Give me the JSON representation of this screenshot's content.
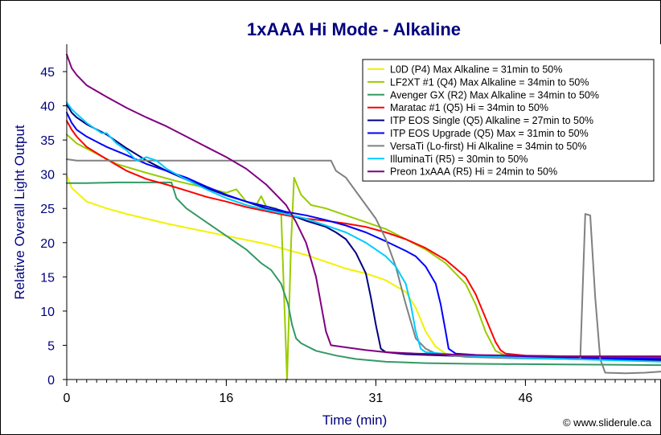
{
  "chart_data": {
    "type": "line",
    "title": "1xAAA Hi Mode - Alkaline",
    "xlabel": "Time (min)",
    "ylabel": "Relative Overall Light Output",
    "xlim": [
      0,
      60
    ],
    "ylim": [
      0,
      49
    ],
    "xticks": [
      0,
      16,
      31,
      46
    ],
    "yticks": [
      0,
      5,
      10,
      15,
      20,
      25,
      30,
      35,
      40,
      45
    ],
    "grid": false,
    "legend_position": "top-right",
    "credit": "© www.sliderule.ca",
    "series": [
      {
        "name": "L0D (P4) Max Alkaline = 31min to 50%",
        "color": "#f2f200",
        "points": [
          [
            0,
            29.8
          ],
          [
            0.5,
            28
          ],
          [
            2,
            26
          ],
          [
            4,
            25
          ],
          [
            6,
            24.2
          ],
          [
            8,
            23.5
          ],
          [
            10,
            22.8
          ],
          [
            12,
            22.2
          ],
          [
            14,
            21.6
          ],
          [
            16,
            21
          ],
          [
            18,
            20.4
          ],
          [
            20,
            19.8
          ],
          [
            22,
            19
          ],
          [
            24,
            18.2
          ],
          [
            26,
            17.2
          ],
          [
            28,
            16.2
          ],
          [
            30,
            15.5
          ],
          [
            32,
            14.5
          ],
          [
            34,
            12.8
          ],
          [
            35,
            10.5
          ],
          [
            36,
            7
          ],
          [
            37,
            4.8
          ],
          [
            38,
            3.8
          ],
          [
            40,
            3.4
          ],
          [
            44,
            3.2
          ],
          [
            50,
            3
          ],
          [
            55,
            2.9
          ],
          [
            60,
            2.8
          ]
        ]
      },
      {
        "name": "LF2XT #1 (Q4) Max Alkaline  = 34min to 50%",
        "color": "#99cc00",
        "points": [
          [
            0,
            35.8
          ],
          [
            1,
            34.5
          ],
          [
            3,
            33
          ],
          [
            5,
            31.5
          ],
          [
            8,
            30.2
          ],
          [
            11,
            29
          ],
          [
            14,
            28
          ],
          [
            16,
            27.3
          ],
          [
            17,
            27.8
          ],
          [
            18,
            26
          ],
          [
            19,
            25.5
          ],
          [
            19.5,
            26.8
          ],
          [
            20,
            25.3
          ],
          [
            21,
            25
          ],
          [
            21.5,
            24.5
          ],
          [
            21.8,
            12
          ],
          [
            22.1,
            0
          ],
          [
            22.5,
            20
          ],
          [
            22.8,
            29.5
          ],
          [
            23.5,
            27
          ],
          [
            24.5,
            25.5
          ],
          [
            26,
            25
          ],
          [
            28,
            24
          ],
          [
            30,
            23
          ],
          [
            32,
            22
          ],
          [
            34,
            20.5
          ],
          [
            36,
            19
          ],
          [
            38,
            17
          ],
          [
            40,
            14
          ],
          [
            41,
            11
          ],
          [
            42,
            7
          ],
          [
            43,
            4.2
          ],
          [
            44,
            3.5
          ],
          [
            48,
            3.2
          ],
          [
            52,
            3.1
          ],
          [
            56,
            3
          ],
          [
            60,
            2.9
          ]
        ]
      },
      {
        "name": "Avenger GX (R2) Max Alkaline = 34min to 50%",
        "color": "#339966",
        "points": [
          [
            0,
            28.7
          ],
          [
            2,
            28.7
          ],
          [
            5,
            28.8
          ],
          [
            8,
            28.8
          ],
          [
            10.5,
            28.8
          ],
          [
            11,
            26.5
          ],
          [
            12,
            25
          ],
          [
            14,
            23
          ],
          [
            16,
            21
          ],
          [
            18,
            19
          ],
          [
            19.5,
            17
          ],
          [
            20.5,
            16
          ],
          [
            21.5,
            14
          ],
          [
            22.2,
            11
          ],
          [
            22.6,
            8
          ],
          [
            23,
            6
          ],
          [
            23.5,
            5.3
          ],
          [
            25,
            4.2
          ],
          [
            27,
            3.5
          ],
          [
            29,
            3
          ],
          [
            32,
            2.6
          ],
          [
            36,
            2.4
          ],
          [
            40,
            2.3
          ],
          [
            50,
            2.2
          ],
          [
            60,
            2.1
          ]
        ]
      },
      {
        "name": "Maratac #1 (Q5) Hi = 34min to 50%",
        "color": "#ff0000",
        "points": [
          [
            0,
            37.8
          ],
          [
            0.5,
            36.5
          ],
          [
            1,
            35.5
          ],
          [
            2,
            34
          ],
          [
            4,
            32.2
          ],
          [
            6,
            30.5
          ],
          [
            8,
            29.3
          ],
          [
            10,
            28.5
          ],
          [
            12,
            27.6
          ],
          [
            14,
            26.7
          ],
          [
            16,
            26
          ],
          [
            18,
            25.2
          ],
          [
            20,
            24.6
          ],
          [
            22,
            24
          ],
          [
            24,
            23.5
          ],
          [
            26,
            23.2
          ],
          [
            28,
            22.8
          ],
          [
            30,
            22.3
          ],
          [
            32,
            21.5
          ],
          [
            34,
            20.5
          ],
          [
            36,
            19.2
          ],
          [
            38,
            17.5
          ],
          [
            40,
            15
          ],
          [
            41,
            12.5
          ],
          [
            42,
            9
          ],
          [
            43,
            5.5
          ],
          [
            43.5,
            4.3
          ],
          [
            44,
            3.8
          ],
          [
            46,
            3.5
          ],
          [
            50,
            3.4
          ],
          [
            55,
            3.3
          ],
          [
            60,
            3.2
          ]
        ]
      },
      {
        "name": "ITP EOS Single (Q5) Alkaline = 27min to 50%",
        "color": "#000080",
        "points": [
          [
            0,
            40.2
          ],
          [
            0.5,
            39
          ],
          [
            1,
            38.3
          ],
          [
            2,
            37.3
          ],
          [
            4,
            35.8
          ],
          [
            6,
            33.8
          ],
          [
            8,
            32
          ],
          [
            10,
            30.5
          ],
          [
            12,
            29.2
          ],
          [
            14,
            28
          ],
          [
            16,
            26.9
          ],
          [
            18,
            26
          ],
          [
            20,
            25
          ],
          [
            22,
            24.3
          ],
          [
            24,
            23.2
          ],
          [
            26,
            22.3
          ],
          [
            27,
            21.5
          ],
          [
            28,
            20.5
          ],
          [
            29,
            18.5
          ],
          [
            30,
            15.5
          ],
          [
            30.5,
            12
          ],
          [
            31,
            8
          ],
          [
            31.5,
            4.5
          ],
          [
            32,
            4
          ],
          [
            34,
            3.7
          ],
          [
            36,
            3.6
          ],
          [
            40,
            3.4
          ],
          [
            45,
            3.2
          ],
          [
            50,
            3
          ],
          [
            55,
            2.9
          ],
          [
            60,
            2.8
          ]
        ]
      },
      {
        "name": "ITP EOS Upgrade (Q5) Max = 31min to 50%",
        "color": "#0000ff",
        "points": [
          [
            0,
            39
          ],
          [
            0.5,
            37.5
          ],
          [
            1,
            36.5
          ],
          [
            2,
            35.5
          ],
          [
            4,
            34
          ],
          [
            6,
            32.8
          ],
          [
            8,
            31.5
          ],
          [
            10,
            30.5
          ],
          [
            12,
            29.5
          ],
          [
            14,
            28.2
          ],
          [
            16,
            27
          ],
          [
            18,
            26
          ],
          [
            20,
            25.3
          ],
          [
            22,
            24.5
          ],
          [
            24,
            24
          ],
          [
            26,
            23.3
          ],
          [
            28,
            22.5
          ],
          [
            30,
            21.5
          ],
          [
            32,
            20.2
          ],
          [
            34,
            18.8
          ],
          [
            35,
            18
          ],
          [
            36,
            16.5
          ],
          [
            37,
            14
          ],
          [
            37.5,
            11
          ],
          [
            38,
            7
          ],
          [
            38.3,
            4.5
          ],
          [
            39,
            3.8
          ],
          [
            42,
            3.5
          ],
          [
            46,
            3.3
          ],
          [
            50,
            3.2
          ],
          [
            55,
            3.1
          ],
          [
            60,
            3
          ]
        ]
      },
      {
        "name": "VersaTi (Lo-first) Hi Alkaline = 34min to 50%",
        "color": "#808080",
        "points": [
          [
            0,
            32.2
          ],
          [
            1,
            32
          ],
          [
            5,
            32
          ],
          [
            10,
            32
          ],
          [
            15,
            32
          ],
          [
            20,
            32
          ],
          [
            24,
            32
          ],
          [
            26.5,
            32
          ],
          [
            27,
            30.5
          ],
          [
            28,
            29.5
          ],
          [
            29,
            27.5
          ],
          [
            30,
            25.5
          ],
          [
            31,
            23.5
          ],
          [
            32,
            20.5
          ],
          [
            33,
            16.5
          ],
          [
            34,
            11
          ],
          [
            35,
            6
          ],
          [
            36,
            4.5
          ],
          [
            37,
            3.8
          ],
          [
            40,
            3.3
          ],
          [
            45,
            3.1
          ],
          [
            50,
            3
          ],
          [
            51.5,
            3
          ],
          [
            52,
            24.2
          ],
          [
            52.5,
            24
          ],
          [
            53,
            12
          ],
          [
            53.5,
            3
          ],
          [
            54,
            1
          ],
          [
            56,
            0.9
          ],
          [
            58,
            1
          ],
          [
            60,
            1.2
          ]
        ]
      },
      {
        "name": "IlluminaTi (R5) = 30min to 50%",
        "color": "#00ccff",
        "points": [
          [
            0,
            40.5
          ],
          [
            0.5,
            39.5
          ],
          [
            1,
            38.8
          ],
          [
            2,
            37.5
          ],
          [
            3,
            36.5
          ],
          [
            3.5,
            36
          ],
          [
            4,
            36
          ],
          [
            5,
            34.5
          ],
          [
            6,
            33.5
          ],
          [
            7,
            32
          ],
          [
            8,
            32.5
          ],
          [
            9,
            32
          ],
          [
            10,
            30.8
          ],
          [
            12,
            29.2
          ],
          [
            14,
            27.8
          ],
          [
            16,
            26.5
          ],
          [
            18,
            25.5
          ],
          [
            20,
            24.8
          ],
          [
            22,
            24.2
          ],
          [
            24,
            23.5
          ],
          [
            26,
            22.5
          ],
          [
            28,
            21.5
          ],
          [
            30,
            20
          ],
          [
            32,
            18
          ],
          [
            33,
            16.5
          ],
          [
            34,
            14
          ],
          [
            34.5,
            11
          ],
          [
            35,
            7
          ],
          [
            35.5,
            4.5
          ],
          [
            36,
            4
          ],
          [
            40,
            3.5
          ],
          [
            45,
            3.2
          ],
          [
            50,
            3
          ],
          [
            55,
            2.8
          ],
          [
            60,
            2.6
          ]
        ]
      },
      {
        "name": "Preon 1xAAA (R5) Hi = 24min to 50%",
        "color": "#800080",
        "points": [
          [
            0,
            47.5
          ],
          [
            0.5,
            45.5
          ],
          [
            1,
            44.5
          ],
          [
            2,
            43
          ],
          [
            4,
            41.3
          ],
          [
            6,
            39.7
          ],
          [
            8,
            38.3
          ],
          [
            10,
            37
          ],
          [
            12,
            35.5
          ],
          [
            14,
            34
          ],
          [
            16,
            32.5
          ],
          [
            18,
            30.8
          ],
          [
            20,
            28.5
          ],
          [
            21,
            27
          ],
          [
            22,
            25.5
          ],
          [
            23,
            23
          ],
          [
            24,
            20
          ],
          [
            25,
            15
          ],
          [
            25.5,
            11
          ],
          [
            26,
            7
          ],
          [
            26.5,
            5
          ],
          [
            28,
            4.7
          ],
          [
            30,
            4.3
          ],
          [
            32,
            4
          ],
          [
            35,
            3.8
          ],
          [
            40,
            3.6
          ],
          [
            45,
            3.5
          ],
          [
            50,
            3.4
          ],
          [
            55,
            3.4
          ],
          [
            60,
            3.4
          ]
        ]
      }
    ]
  }
}
